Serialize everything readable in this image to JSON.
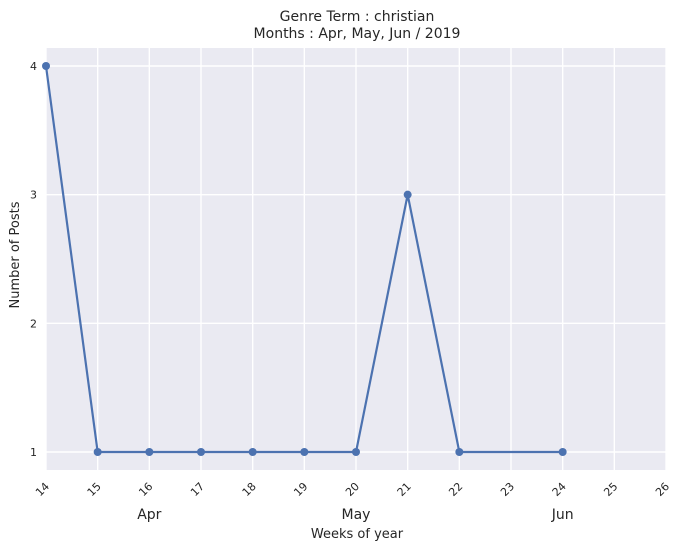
{
  "chart_data": {
    "type": "line",
    "title_line1": "Genre Term : christian",
    "title_line2": "Months : Apr, May, Jun / 2019",
    "xlabel": "Weeks of year",
    "ylabel": "Number of Posts",
    "xlim": [
      14,
      26
    ],
    "ylim": [
      0.86,
      4.14
    ],
    "x_ticks": [
      "14",
      "15",
      "16",
      "17",
      "18",
      "19",
      "20",
      "21",
      "22",
      "23",
      "24",
      "25",
      "26"
    ],
    "y_ticks": [
      "1",
      "2",
      "3",
      "4"
    ],
    "month_labels": [
      {
        "label": "Apr",
        "x": 16
      },
      {
        "label": "May",
        "x": 20
      },
      {
        "label": "Jun",
        "x": 24
      }
    ],
    "series": [
      {
        "x": [
          14,
          15,
          16,
          17,
          18,
          19,
          20,
          21,
          22,
          24
        ],
        "y": [
          4,
          1,
          1,
          1,
          1,
          1,
          1,
          3,
          1,
          1
        ]
      }
    ],
    "grid": true,
    "background": "#EAEAF2",
    "line_color": "#4C72B0"
  }
}
